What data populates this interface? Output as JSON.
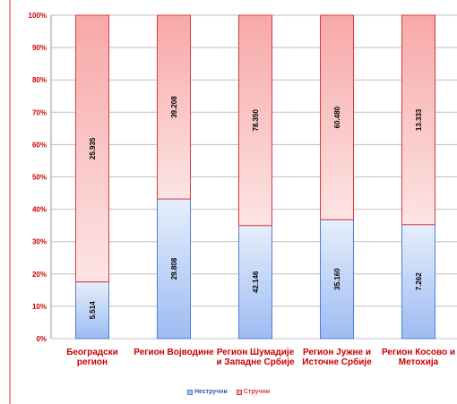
{
  "chart_data": {
    "type": "bar",
    "stacked": "percent",
    "categories": [
      [
        "Београдски",
        "регион"
      ],
      [
        "Регион Војводине"
      ],
      [
        "Регион Шумадије",
        "и Западне Србије"
      ],
      [
        "Регион Јужне и",
        "Источне Србије"
      ],
      [
        "Регион Косово и",
        "Метохија"
      ]
    ],
    "series": [
      {
        "name": "Нестручни",
        "values": [
          5514,
          29808,
          42146,
          35160,
          7262
        ],
        "labels": [
          "5.514",
          "29.808",
          "42.146",
          "35.160",
          "7.262"
        ],
        "color": "#a8c4f2",
        "edge": "#4f7fd6"
      },
      {
        "name": "Стручни",
        "values": [
          25935,
          39208,
          78350,
          60480,
          13333
        ],
        "labels": [
          "25.935",
          "39.208",
          "78.350",
          "60.480",
          "13.333"
        ],
        "color": "#f7b6b6",
        "edge": "#d93b3b"
      }
    ],
    "y_ticks": [
      "0%",
      "10%",
      "20%",
      "30%",
      "40%",
      "50%",
      "60%",
      "70%",
      "80%",
      "90%",
      "100%"
    ],
    "ylim": [
      0,
      100
    ],
    "grid": true,
    "legend_position": "bottom",
    "colors": {
      "axis_text": "#cc0000",
      "gridline": "#bfbfbf",
      "frame": "#cc3333",
      "legend_text": "#3f51b5"
    }
  }
}
